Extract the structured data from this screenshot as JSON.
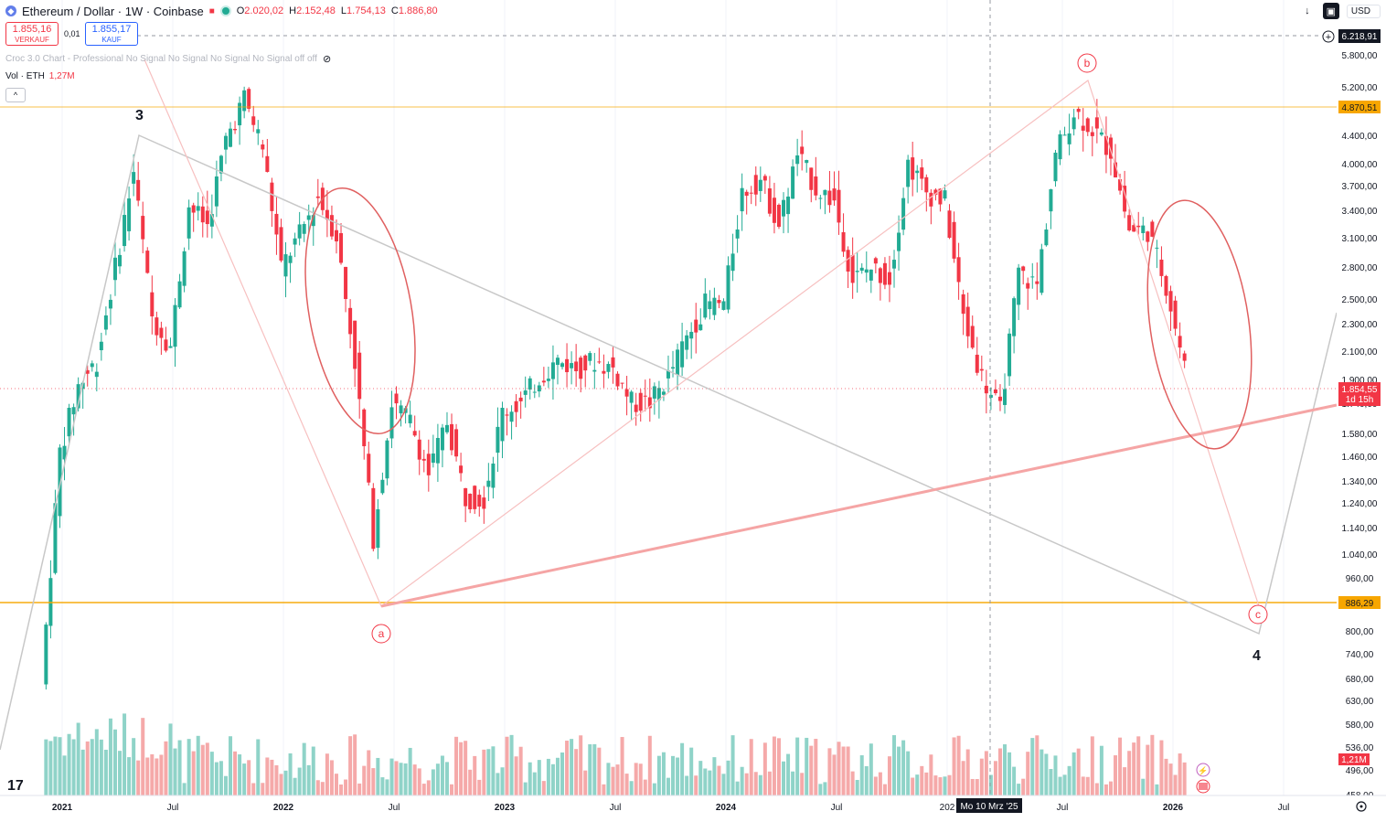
{
  "header": {
    "symbol": "Ethereum / Dollar · 1W · Coinbase",
    "logo_icon": "ethereum-icon",
    "o_label": "O",
    "o_value": "2.020,02",
    "h_label": "H",
    "h_value": "2.152,48",
    "l_label": "L",
    "l_value": "1.754,13",
    "c_label": "C",
    "c_value": "1.886,80"
  },
  "trade": {
    "sell_price": "1.855,16",
    "sell_label": "VERKAUF",
    "spread": "0,01",
    "buy_price": "1.855,17",
    "buy_label": "KAUF"
  },
  "indicator": {
    "text": "Croc 3.0 Chart - Professional No Signal No Signal No Signal No Signal off off",
    "eye_icon": "eye-off-icon"
  },
  "volume_legend": {
    "label": "Vol · ETH",
    "value": "1,27M"
  },
  "toolbar": {
    "currency": "USD",
    "collapse_label": "^"
  },
  "price_scale": {
    "ticks": [
      "5.800,00",
      "5.200,00",
      "4.400,00",
      "4.000,00",
      "3.700,00",
      "3.400,00",
      "3.100,00",
      "2.800,00",
      "2.500,00",
      "2.300,00",
      "2.100,00",
      "1.900,00",
      "1.740,00",
      "1.580,00",
      "1.460,00",
      "1.340,00",
      "1.240,00",
      "1.140,00",
      "1.040,00",
      "960,00",
      "880,00",
      "800,00",
      "740,00",
      "680,00",
      "630,00",
      "580,00",
      "536,00",
      "496,00",
      "458,00"
    ],
    "crosshair_label": "6.218,91",
    "resistance_label": "4.870,51",
    "support_label": "886,29",
    "last_price_label": "1.854,55",
    "countdown_label": "1d 15h",
    "volume_label": "1,21M",
    "colors": {
      "resistance": "#f7a600",
      "last": "#f23645",
      "crosshair": "#131722"
    }
  },
  "time_scale": {
    "ticks": [
      "2021",
      "Jul",
      "2022",
      "Jul",
      "2023",
      "Jul",
      "2024",
      "Jul",
      "202",
      "Jul",
      "2026",
      "Jul"
    ],
    "crosshair_label": "Mo 10 Mrz '25"
  },
  "annotations": {
    "wave_3": "3",
    "wave_4": "4",
    "wave_a": "a",
    "wave_b": "b",
    "wave_c": "c"
  },
  "chart_data": {
    "type": "candlestick",
    "title": "Ethereum / Dollar · 1W · Coinbase",
    "y_scale": "log",
    "ylim": [
      440,
      6400
    ],
    "x_range": [
      "2020-10",
      "2026-07"
    ],
    "horizontal_levels": [
      {
        "value": 4870.51,
        "color": "#f7a600"
      },
      {
        "value": 886.29,
        "color": "#f7a600"
      }
    ],
    "last_price": 1854.55,
    "series": [
      {
        "name": "ETH",
        "points": [
          [
            "2020-12",
            640
          ],
          [
            "2021-01",
            1400
          ],
          [
            "2021-02",
            1750
          ],
          [
            "2021-03",
            1900
          ],
          [
            "2021-04",
            2600
          ],
          [
            "2021-05",
            3600
          ],
          [
            "2021-06",
            2200
          ],
          [
            "2021-07",
            2000
          ],
          [
            "2021-08",
            3200
          ],
          [
            "2021-09",
            3000
          ],
          [
            "2021-10",
            4000
          ],
          [
            "2021-11",
            4600
          ],
          [
            "2021-12",
            3900
          ],
          [
            "2022-01",
            2600
          ],
          [
            "2022-02",
            2900
          ],
          [
            "2022-03",
            3300
          ],
          [
            "2022-04",
            2900
          ],
          [
            "2022-05",
            1900
          ],
          [
            "2022-06",
            1050
          ],
          [
            "2022-07",
            1650
          ],
          [
            "2022-08",
            1550
          ],
          [
            "2022-09",
            1300
          ],
          [
            "2022-10",
            1550
          ],
          [
            "2022-11",
            1200
          ],
          [
            "2022-12",
            1200
          ],
          [
            "2023-01",
            1600
          ],
          [
            "2023-02",
            1650
          ],
          [
            "2023-03",
            1800
          ],
          [
            "2023-04",
            1900
          ],
          [
            "2023-05",
            1850
          ],
          [
            "2023-06",
            1900
          ],
          [
            "2023-07",
            1850
          ],
          [
            "2023-08",
            1650
          ],
          [
            "2023-09",
            1650
          ],
          [
            "2023-10",
            1800
          ],
          [
            "2023-11",
            2050
          ],
          [
            "2023-12",
            2300
          ],
          [
            "2024-01",
            2300
          ],
          [
            "2024-02",
            3350
          ],
          [
            "2024-03",
            3500
          ],
          [
            "2024-04",
            3000
          ],
          [
            "2024-05",
            3800
          ],
          [
            "2024-06",
            3400
          ],
          [
            "2024-07",
            3250
          ],
          [
            "2024-08",
            2500
          ],
          [
            "2024-09",
            2600
          ],
          [
            "2024-10",
            2500
          ],
          [
            "2024-11",
            3700
          ],
          [
            "2024-12",
            3350
          ],
          [
            "2025-01",
            3250
          ],
          [
            "2025-02",
            2200
          ],
          [
            "2025-03",
            1800
          ],
          [
            "2025-04",
            1600
          ],
          [
            "2025-05",
            2550
          ],
          [
            "2025-06",
            2450
          ],
          [
            "2025-07",
            3800
          ],
          [
            "2025-08",
            4400
          ],
          [
            "2025-09",
            4150
          ],
          [
            "2025-10",
            3850
          ],
          [
            "2025-11",
            2950
          ],
          [
            "2025-12",
            2950
          ],
          [
            "2026-01",
            2450
          ],
          [
            "2026-02",
            1855
          ]
        ]
      }
    ]
  }
}
